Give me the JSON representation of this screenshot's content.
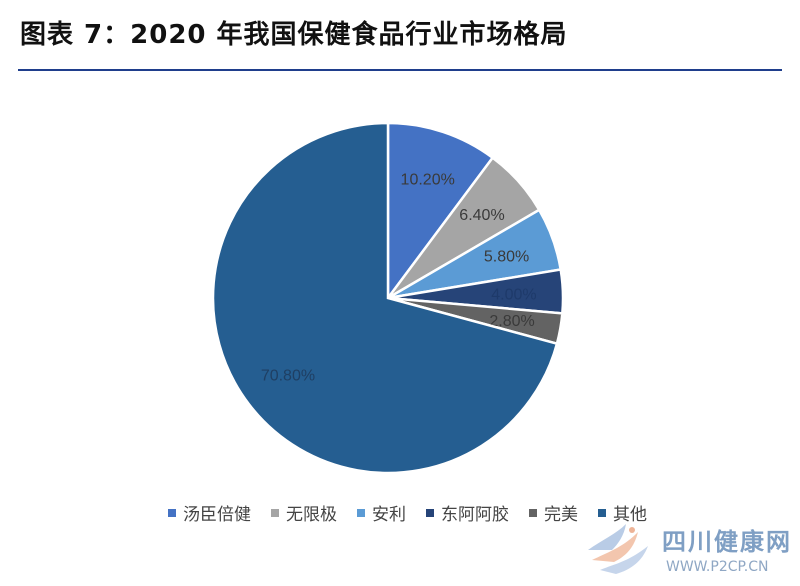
{
  "header": {
    "title": "图表 7：2020 年我国保健食品行业市场格局"
  },
  "chart_data": {
    "type": "pie",
    "title": "",
    "start_angle_deg": 0,
    "direction": "clockwise",
    "slices": [
      {
        "name": "汤臣倍健",
        "value": 10.2,
        "label": "10.20%",
        "color": "#4472c4",
        "label_color": "#3a3a3a"
      },
      {
        "name": "无限极",
        "value": 6.4,
        "label": "6.40%",
        "color": "#a5a5a5",
        "label_color": "#3a3a3a"
      },
      {
        "name": "安利",
        "value": 5.8,
        "label": "5.80%",
        "color": "#5b9bd5",
        "label_color": "#3a3a3a"
      },
      {
        "name": "东阿阿胶",
        "value": 4.0,
        "label": "4.00%",
        "color": "#264478",
        "label_color": "#1e3a6a"
      },
      {
        "name": "完美",
        "value": 2.8,
        "label": "2.80%",
        "color": "#636363",
        "label_color": "#3a3a3a"
      },
      {
        "name": "其他",
        "value": 70.8,
        "label": "70.80%",
        "color": "#255e91",
        "label_color": "#1f3f63"
      }
    ],
    "legend_position": "bottom"
  },
  "watermark": {
    "name": "四川健康网",
    "url": "WWW.P2CP.CN"
  }
}
